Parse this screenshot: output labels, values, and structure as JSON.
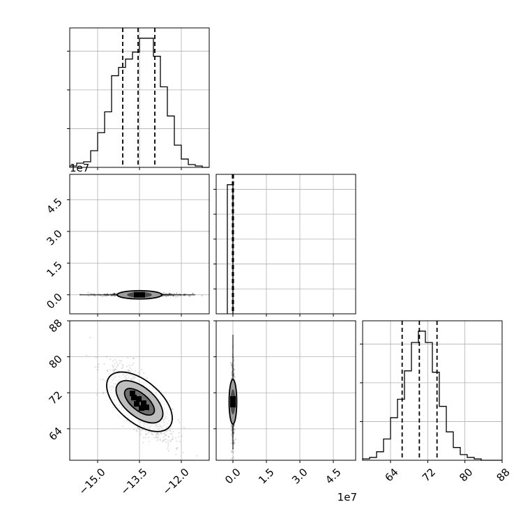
{
  "chart_data": {
    "type": "corner",
    "parameters": 3,
    "grid": true,
    "quantile_lines": "dashed",
    "panels": [
      {
        "id": "hist-p0",
        "type": "histogram",
        "row": 0,
        "col": 0,
        "xlim": [
          -16.0,
          -11.0
        ],
        "y_visible_ticks": 3,
        "bins": [
          -16.0,
          -15.75,
          -15.5,
          -15.25,
          -15.0,
          -14.75,
          -14.5,
          -14.25,
          -14.0,
          -13.75,
          -13.5,
          -13.25,
          -13.0,
          -12.75,
          -12.5,
          -12.25,
          -12.0,
          -11.75,
          -11.5,
          -11.25
        ],
        "counts": [
          1,
          3,
          4,
          12,
          25,
          40,
          66,
          72,
          78,
          83,
          93,
          93,
          80,
          58,
          37,
          16,
          6,
          2,
          1,
          0
        ],
        "quantiles": [
          -14.1,
          -13.55,
          -12.95
        ]
      },
      {
        "id": "hist-p1",
        "type": "histogram",
        "row": 1,
        "col": 1,
        "xlim": [
          -0.75,
          5.5
        ],
        "y_visible_ticks": 5,
        "bins": [
          -0.25,
          0.0
        ],
        "counts": [
          100,
          0
        ],
        "quantiles": [
          -0.02,
          0.0,
          0.02
        ]
      },
      {
        "id": "hist-p2",
        "type": "histogram",
        "row": 2,
        "col": 2,
        "xlim": [
          58.0,
          88.0
        ],
        "x_ticks": [
          "64",
          "72",
          "80",
          "88"
        ],
        "x_tick_values": [
          64,
          72,
          80,
          88
        ],
        "y_visible_ticks": 3,
        "bins": [
          58,
          59.5,
          61,
          62.5,
          64,
          65.5,
          67,
          68.5,
          70,
          71.5,
          73,
          74.5,
          76,
          77.5,
          79,
          80.5,
          82,
          83.5,
          85,
          86.5
        ],
        "counts": [
          1,
          2,
          6,
          15,
          30,
          43,
          63,
          83,
          91,
          83,
          62,
          38,
          20,
          9,
          4,
          2,
          1,
          0,
          0,
          0
        ],
        "quantiles": [
          66.5,
          70.2,
          74.0
        ]
      },
      {
        "id": "kde-p0-p1",
        "type": "2d-density",
        "row": 1,
        "col": 0,
        "xlim": [
          -16.0,
          -11.0
        ],
        "ylim": [
          -0.9,
          5.7
        ],
        "y_ticks": [
          "0.0",
          "1.5",
          "3.0",
          "4.5"
        ],
        "y_tick_values": [
          0.0,
          1.5,
          3.0,
          4.5
        ],
        "y_exponent": "1e7",
        "center": [
          -13.5,
          0.0
        ]
      },
      {
        "id": "kde-p0-p2",
        "type": "2d-density",
        "row": 2,
        "col": 0,
        "xlim": [
          -16.0,
          -11.0
        ],
        "ylim": [
          57.0,
          88.0
        ],
        "x_ticks": [
          "−15.0",
          "−13.5",
          "−12.0"
        ],
        "x_tick_values": [
          -15.0,
          -13.5,
          -12.0
        ],
        "y_ticks": [
          "64",
          "72",
          "80",
          "88"
        ],
        "y_tick_values": [
          64,
          72,
          80,
          88
        ],
        "center": [
          -13.5,
          70.0
        ],
        "correlation": -0.75
      },
      {
        "id": "kde-p1-p2",
        "type": "2d-density",
        "row": 2,
        "col": 1,
        "xlim": [
          -0.75,
          5.5
        ],
        "ylim": [
          57.0,
          88.0
        ],
        "x_ticks": [
          "0.0",
          "1.5",
          "3.0",
          "4.5"
        ],
        "x_tick_values": [
          0.0,
          1.5,
          3.0,
          4.5
        ],
        "x_exponent": "1e7",
        "center": [
          0.0,
          70.0
        ]
      }
    ]
  }
}
